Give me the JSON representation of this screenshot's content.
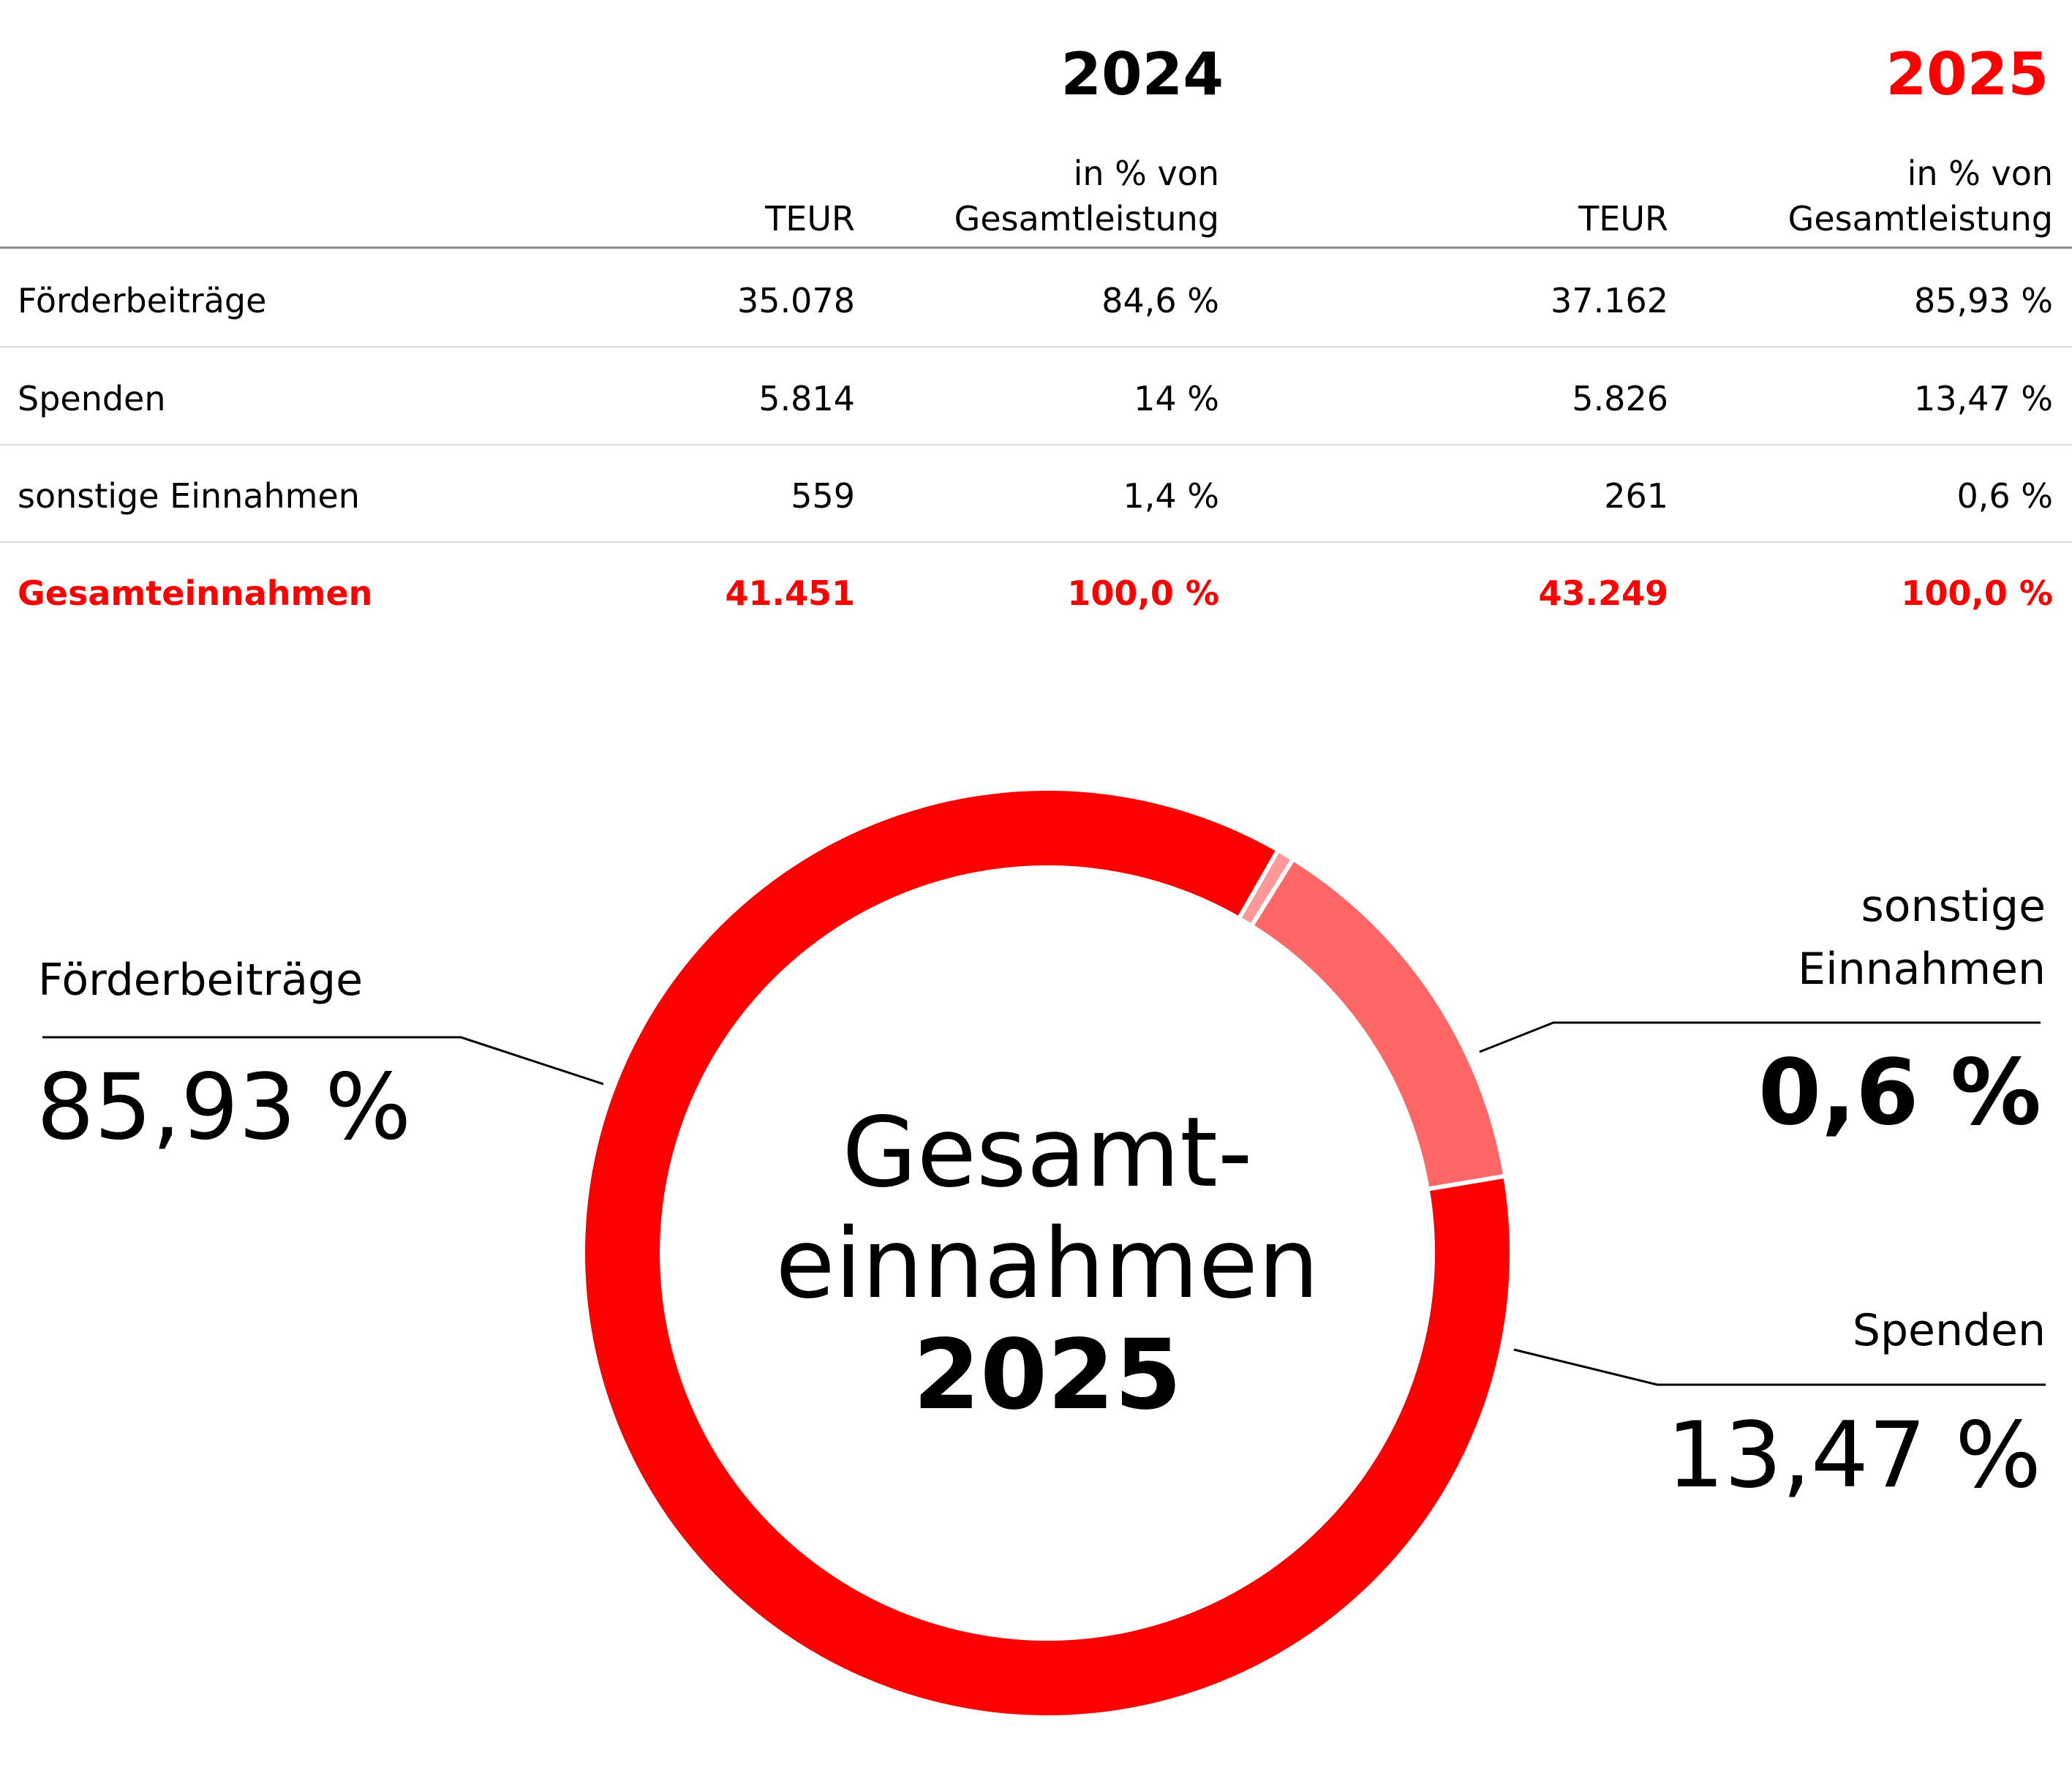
{
  "table": {
    "years": [
      "2024",
      "2025"
    ],
    "col_teur": "TEUR",
    "col_pct_line1": "in % von",
    "col_pct_line2": "Gesamtleistung",
    "rows": [
      {
        "label": "Förderbeiträge",
        "teur_2024": "35.078",
        "pct_2024": "84,6 %",
        "teur_2025": "37.162",
        "pct_2025": "85,93 %"
      },
      {
        "label": "Spenden",
        "teur_2024": "5.814",
        "pct_2024": "14 %",
        "teur_2025": "5.826",
        "pct_2025": "13,47 %"
      },
      {
        "label": "sonstige Einnahmen",
        "teur_2024": "559",
        "pct_2024": "1,4 %",
        "teur_2025": "261",
        "pct_2025": "0,6 %"
      },
      {
        "label": "Gesamteinnahmen",
        "teur_2024": "41.451",
        "pct_2024": "100,0 %",
        "teur_2025": "43.249",
        "pct_2025": "100,0 %"
      }
    ]
  },
  "chart_data": {
    "type": "pie",
    "title_line1": "Gesamt-",
    "title_line2": "einnahmen",
    "title_line3": "2025",
    "labels": {
      "foerder": "Förderbeiträge",
      "spenden": "Spenden",
      "sonstige_line1": "sonstige",
      "sonstige_line2": "Einnahmen"
    },
    "value_labels": {
      "foerder": "85,93 %",
      "spenden": "13,47 %",
      "sonstige": "0,6 %"
    },
    "slices": [
      {
        "name": "Förderbeiträge",
        "value": 85.93,
        "color": "#ff0000"
      },
      {
        "name": "Spenden",
        "value": 13.47,
        "color": "#ff6666"
      },
      {
        "name": "sonstige Einnahmen",
        "value": 0.6,
        "color": "#ff9999"
      }
    ]
  },
  "colors": {
    "accent": "#ff0000",
    "text": "#000000"
  }
}
